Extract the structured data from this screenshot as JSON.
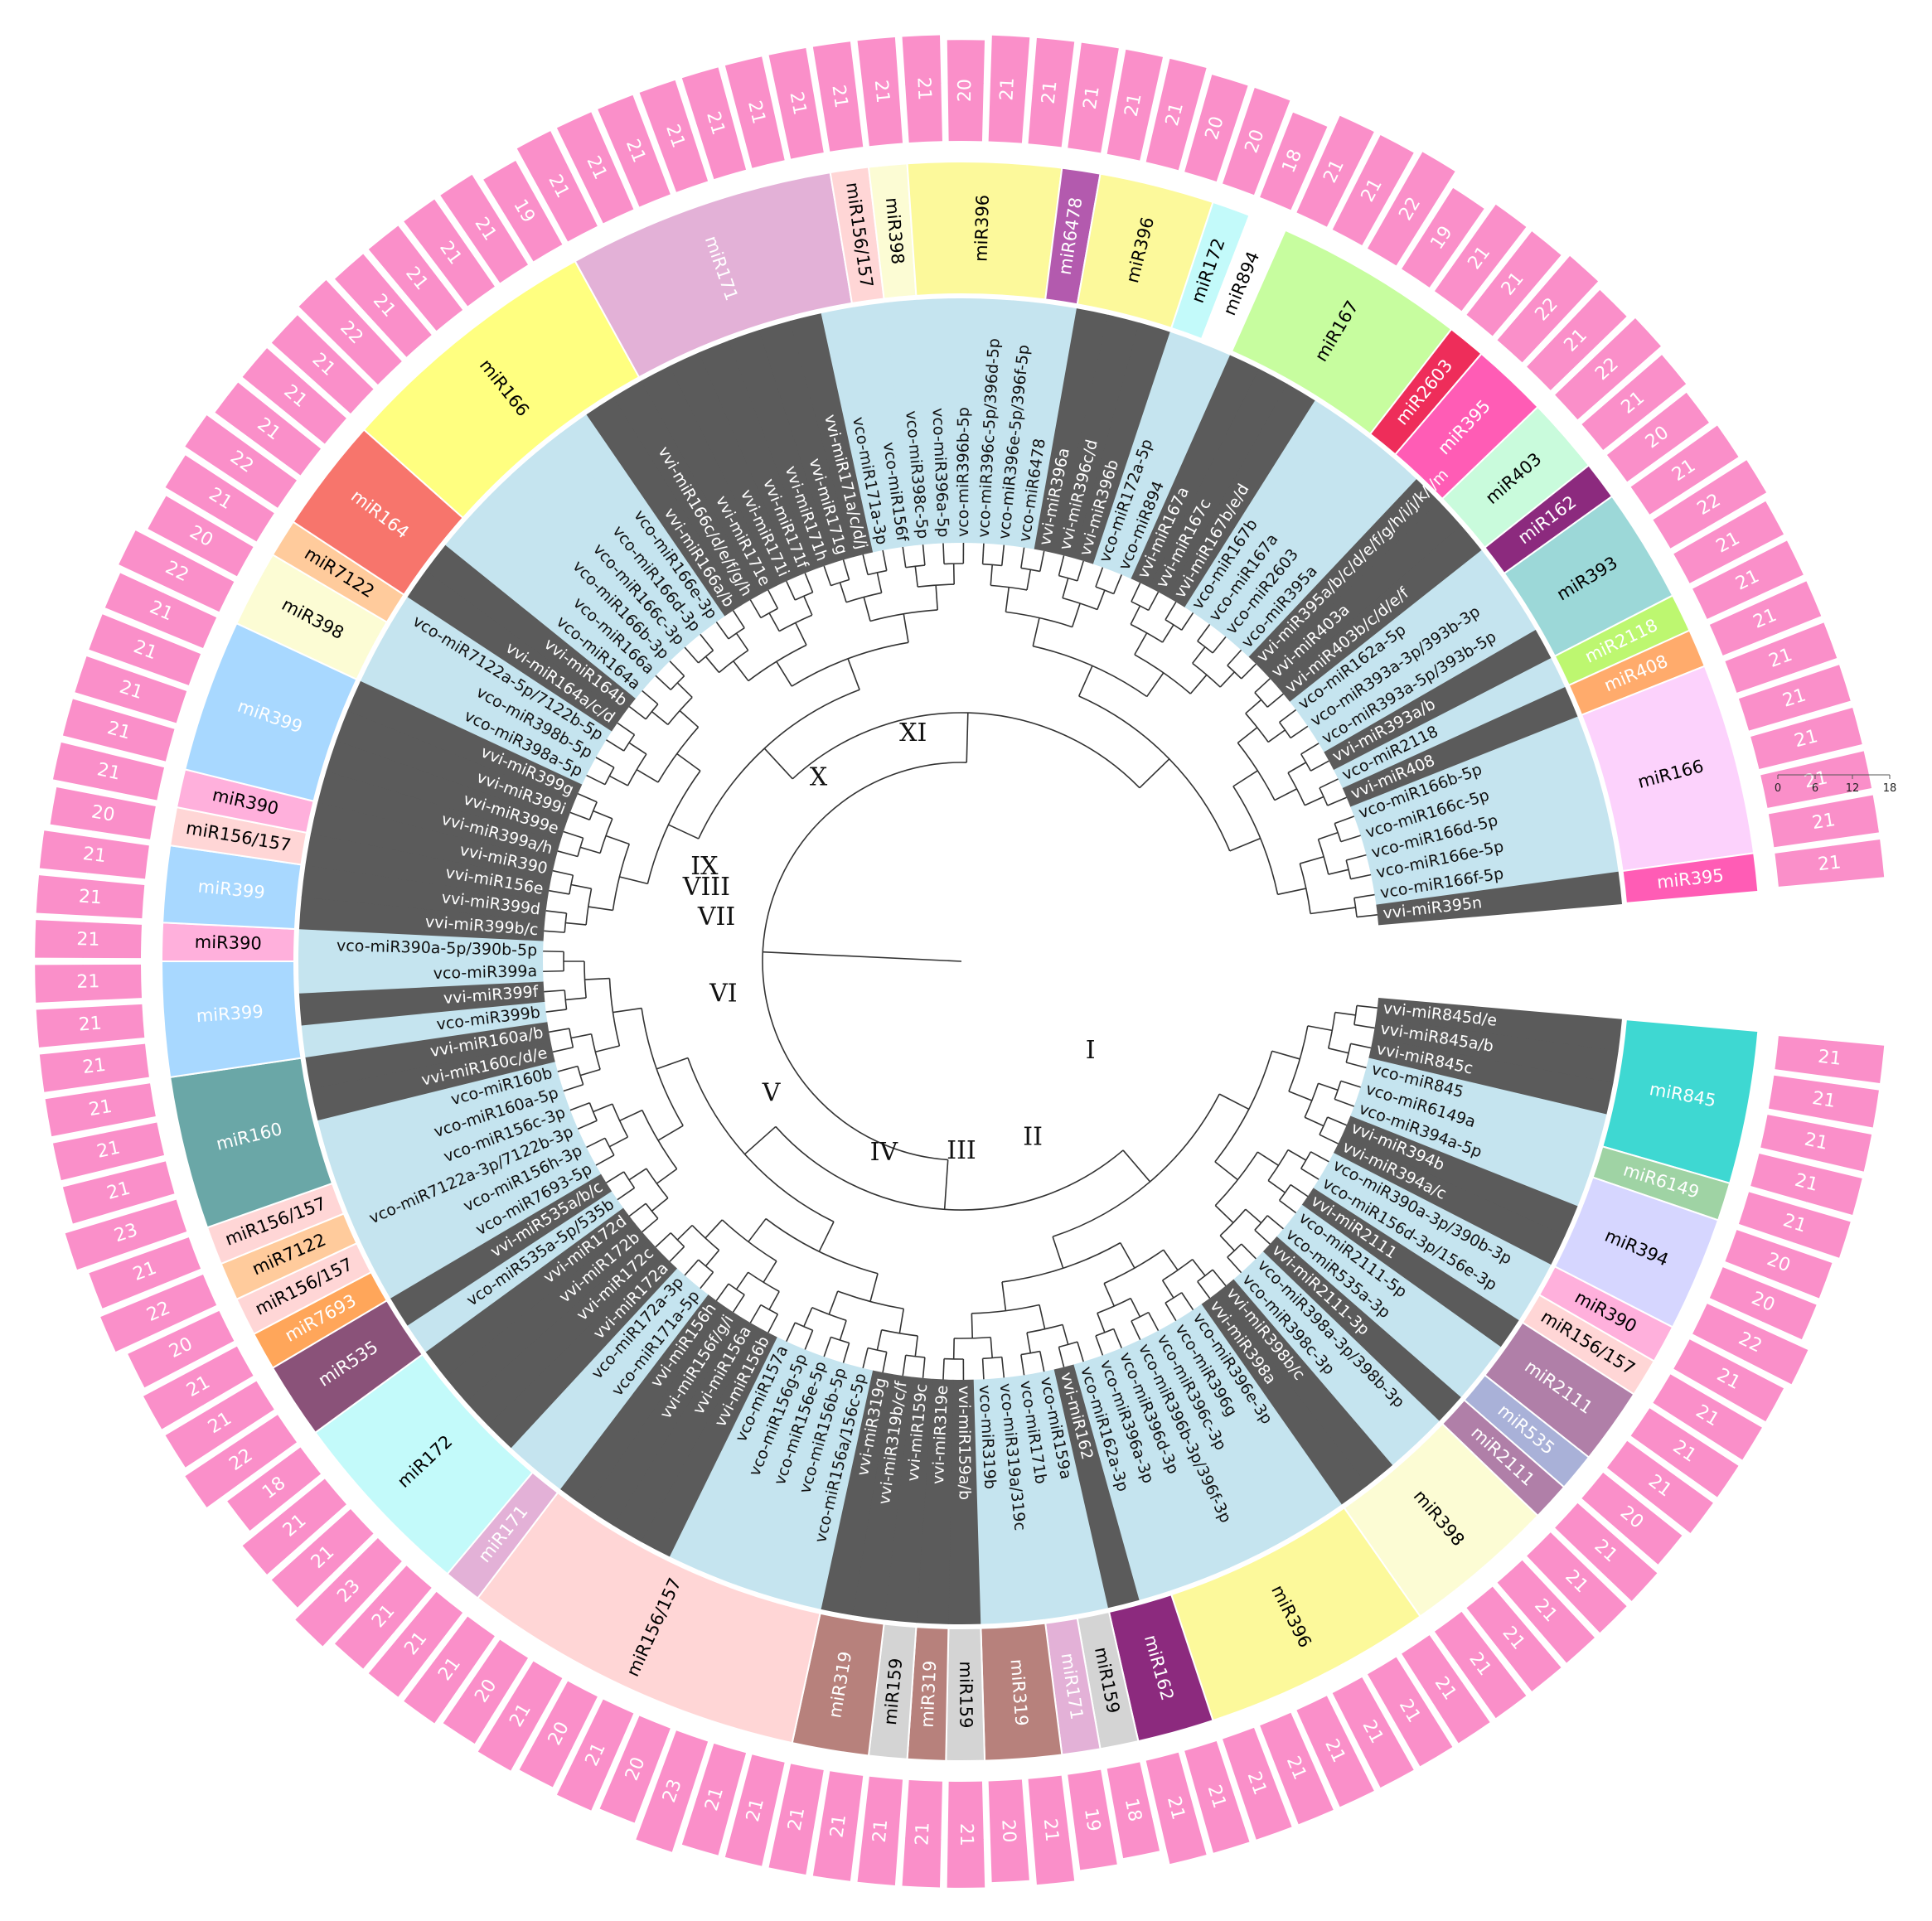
{
  "colors": {
    "vvi_band": "#5b5b5b",
    "vco_band": "#c5e4ef",
    "length_bar": "#fa8fc9",
    "branch": "#333333"
  },
  "length_scale": {
    "ticks": [
      "0",
      "6",
      "12",
      "18"
    ]
  },
  "clades": [
    "I",
    "II",
    "III",
    "IV",
    "V",
    "VI",
    "VII",
    "VIII",
    "IX",
    "X",
    "XI"
  ],
  "leaves": [
    {
      "name": "vvi-miR845d/e",
      "len": "21"
    },
    {
      "name": "vvi-miR845a/b",
      "len": "21"
    },
    {
      "name": "vvi-miR845c",
      "len": "21"
    },
    {
      "name": "vco-miR845",
      "len": "21"
    },
    {
      "name": "vco-miR6149a",
      "len": "21"
    },
    {
      "name": "vco-miR394a-5p",
      "len": "20"
    },
    {
      "name": "vvi-miR394b",
      "len": "20"
    },
    {
      "name": "vvi-miR394a/c",
      "len": "22"
    },
    {
      "name": "vco-miR390a-3p/390b-3p",
      "len": "21"
    },
    {
      "name": "vco-miR156d-3p/156e-3p",
      "len": "21"
    },
    {
      "name": "vvi-miR2111",
      "len": "21"
    },
    {
      "name": "vco-miR2111-5p",
      "len": "21"
    },
    {
      "name": "vco-miR535a-3p",
      "len": "20"
    },
    {
      "name": "vvi-miR2111-3p",
      "len": "21"
    },
    {
      "name": "vco-miR398a-3p/398b-3p",
      "len": "21"
    },
    {
      "name": "vco-miR398c-3p",
      "len": "21"
    },
    {
      "name": "vvi-miR398b/c",
      "len": "21"
    },
    {
      "name": "vvi-miR398a",
      "len": "21"
    },
    {
      "name": "vco-miR396e-3p",
      "len": "21"
    },
    {
      "name": "vco-miR396g",
      "len": "21"
    },
    {
      "name": "vco-miR396c-3p",
      "len": "21"
    },
    {
      "name": "vco-miR396b-3p/396f-3p",
      "len": "21"
    },
    {
      "name": "vco-miR396d-3p",
      "len": "21"
    },
    {
      "name": "vco-miR396a-3p",
      "len": "21"
    },
    {
      "name": "vco-miR162a-3p",
      "len": "21"
    },
    {
      "name": "vvi-miR162",
      "len": "21"
    },
    {
      "name": "vco-miR159a",
      "len": "18"
    },
    {
      "name": "vco-miR171b",
      "len": "19"
    },
    {
      "name": "vco-miR319a/319c",
      "len": "21"
    },
    {
      "name": "vco-miR319b",
      "len": "20"
    },
    {
      "name": "vvi-miR159a/b",
      "len": "21"
    },
    {
      "name": "vvi-miR319e",
      "len": "21"
    },
    {
      "name": "vvi-miR159c",
      "len": "21"
    },
    {
      "name": "vvi-miR319b/c/f",
      "len": "21"
    },
    {
      "name": "vvi-miR319g",
      "len": "21"
    },
    {
      "name": "vco-miR156a/156c-5p",
      "len": "21"
    },
    {
      "name": "vco-miR156b-5p",
      "len": "21"
    },
    {
      "name": "vco-miR156e-5p",
      "len": "23"
    },
    {
      "name": "vco-miR156g-5p",
      "len": "20"
    },
    {
      "name": "vco-miR157a",
      "len": "21"
    },
    {
      "name": "vvi-miR156b",
      "len": "20"
    },
    {
      "name": "vvi-miR156a",
      "len": "21"
    },
    {
      "name": "vvi-miR156f/g/i",
      "len": "20"
    },
    {
      "name": "vvi-miR156h",
      "len": "21"
    },
    {
      "name": "vco-miR171a-5p",
      "len": "21"
    },
    {
      "name": "vco-miR172a-3p",
      "len": "21"
    },
    {
      "name": "vvi-miR172a",
      "len": "23"
    },
    {
      "name": "vvi-miR172c",
      "len": "21"
    },
    {
      "name": "vvi-miR172b",
      "len": "21"
    },
    {
      "name": "vvi-miR172d",
      "len": "18"
    },
    {
      "name": "vco-miR535a-5p/535b",
      "len": "22"
    },
    {
      "name": "vvi-miR535a/b/c",
      "len": "21"
    },
    {
      "name": "vco-miR7693-5p",
      "len": "21"
    },
    {
      "name": "vco-miR156h-3p",
      "len": "20"
    },
    {
      "name": "vco-miR7122a-3p/7122b-3p",
      "len": "22"
    },
    {
      "name": "vco-miR156c-3p",
      "len": "21"
    },
    {
      "name": "vco-miR160a-5p",
      "len": "23"
    },
    {
      "name": "vco-miR160b",
      "len": "21"
    },
    {
      "name": "vvi-miR160c/d/e",
      "len": "21"
    },
    {
      "name": "vvi-miR160a/b",
      "len": "21"
    },
    {
      "name": "vco-miR399b",
      "len": "21"
    },
    {
      "name": "vvi-miR399f",
      "len": "21"
    },
    {
      "name": "vco-miR399a",
      "len": "21"
    },
    {
      "name": "vco-miR390a-5p/390b-5p",
      "len": "21"
    },
    {
      "name": "vvi-miR399b/c",
      "len": "21"
    },
    {
      "name": "vvi-miR399d",
      "len": "21"
    },
    {
      "name": "vvi-miR156e",
      "len": "20"
    },
    {
      "name": "vvi-miR390",
      "len": "21"
    },
    {
      "name": "vvi-miR399a/h",
      "len": "21"
    },
    {
      "name": "vvi-miR399e",
      "len": "21"
    },
    {
      "name": "vvi-miR399i",
      "len": "21"
    },
    {
      "name": "vvi-miR399g",
      "len": "21"
    },
    {
      "name": "vco-miR398a-5p",
      "len": "22"
    },
    {
      "name": "vco-miR398b-5p",
      "len": "20"
    },
    {
      "name": "vco-miR7122a-5p/7122b-5p",
      "len": "21"
    },
    {
      "name": "vvi-miR164a/c/d",
      "len": "22"
    },
    {
      "name": "vvi-miR164b",
      "len": "21"
    },
    {
      "name": "vco-miR164a",
      "len": "21"
    },
    {
      "name": "vco-miR166a",
      "len": "21"
    },
    {
      "name": "vco-miR166b-3p",
      "len": "22"
    },
    {
      "name": "vco-miR166c-3p",
      "len": "21"
    },
    {
      "name": "vco-miR166d-3p",
      "len": "21"
    },
    {
      "name": "vco-miR166e-3p",
      "len": "21"
    },
    {
      "name": "vvi-miR166a/b",
      "len": "21"
    },
    {
      "name": "vvi-miR166c/d/e/f/g/h",
      "len": "19"
    },
    {
      "name": "vvi-miR171e",
      "len": "21"
    },
    {
      "name": "vvi-miR171i",
      "len": "21"
    },
    {
      "name": "vvi-miR171f",
      "len": "21"
    },
    {
      "name": "vvi-miR171h",
      "len": "21"
    },
    {
      "name": "vvi-miR171g",
      "len": "21"
    },
    {
      "name": "vvi-miR171a/c/d/j",
      "len": "21"
    },
    {
      "name": "vco-miR171a-3p",
      "len": "21"
    },
    {
      "name": "vco-miR156f",
      "len": "21"
    },
    {
      "name": "vco-miR398c-5p",
      "len": "21"
    },
    {
      "name": "vco-miR396a-5p",
      "len": "21"
    },
    {
      "name": "vco-miR396b-5p",
      "len": "20"
    },
    {
      "name": "vco-miR396c-5p/396d-5p",
      "len": "21"
    },
    {
      "name": "vco-miR396e-5p/396f-5p",
      "len": "21"
    },
    {
      "name": "vco-miR6478",
      "len": "21"
    },
    {
      "name": "vvi-miR396a",
      "len": "21"
    },
    {
      "name": "vvi-miR396c/d",
      "len": "21"
    },
    {
      "name": "vvi-miR396b",
      "len": "20"
    },
    {
      "name": "vco-miR172a-5p",
      "len": "20"
    },
    {
      "name": "vco-miR894",
      "len": "18"
    },
    {
      "name": "vvi-miR167a",
      "len": "21"
    },
    {
      "name": "vvi-miR167c",
      "len": "21"
    },
    {
      "name": "vvi-miR167b/e/d",
      "len": "22"
    },
    {
      "name": "vco-miR167b",
      "len": "19"
    },
    {
      "name": "vco-miR167a",
      "len": "21"
    },
    {
      "name": "vco-miR2603",
      "len": "21"
    },
    {
      "name": "vco-miR395a",
      "len": "22"
    },
    {
      "name": "vvi-miR395a/b/c/d/e/f/g/h/i/j/k/l/m",
      "len": "21"
    },
    {
      "name": "vvi-miR403a",
      "len": "22"
    },
    {
      "name": "vvi-miR403b/c/d/e/f",
      "len": "21"
    },
    {
      "name": "vco-miR162a-5p",
      "len": "20"
    },
    {
      "name": "vco-miR393a-3p/393b-3p",
      "len": "21"
    },
    {
      "name": "vco-miR393a-5p/393b-5p",
      "len": "22"
    },
    {
      "name": "vvi-miR393a/b",
      "len": "21"
    },
    {
      "name": "vco-miR2118",
      "len": "21"
    },
    {
      "name": "vvi-miR408",
      "len": "21"
    },
    {
      "name": "vco-miR166b-5p",
      "len": "21"
    },
    {
      "name": "vco-miR166c-5p",
      "len": "21"
    },
    {
      "name": "vco-miR166d-5p",
      "len": "21"
    },
    {
      "name": "vco-miR166e-5p",
      "len": "21"
    },
    {
      "name": "vco-miR166f-5p",
      "len": "21"
    },
    {
      "name": "vvi-miR395n",
      "len": "21"
    }
  ],
  "families": [
    {
      "name": "miR845",
      "from": 0,
      "to": 3,
      "color": "#3ed8d2",
      "text": "#ffffff"
    },
    {
      "name": "miR6149",
      "from": 4,
      "to": 4,
      "color": "#9fd3a4",
      "text": "#ffffff"
    },
    {
      "name": "miR394",
      "from": 5,
      "to": 7,
      "color": "#d6d6ff",
      "text": "#000000"
    },
    {
      "name": "miR390",
      "from": 8,
      "to": 8,
      "color": "#ffb0dc",
      "text": "#000000"
    },
    {
      "name": "miR156/157",
      "from": 9,
      "to": 9,
      "color": "#ffd6d6",
      "text": "#000000"
    },
    {
      "name": "miR2111",
      "from": 10,
      "to": 11,
      "color": "#b07fa8",
      "text": "#ffffff"
    },
    {
      "name": "miR535",
      "from": 12,
      "to": 12,
      "color": "#a9b1d8",
      "text": "#ffffff"
    },
    {
      "name": "miR2111",
      "from": 13,
      "to": 13,
      "color": "#b07fa8",
      "text": "#ffffff"
    },
    {
      "name": "miR398",
      "from": 14,
      "to": 17,
      "color": "#fcfcd4",
      "text": "#000000"
    },
    {
      "name": "miR396",
      "from": 18,
      "to": 23,
      "color": "#fcf99b",
      "text": "#000000"
    },
    {
      "name": "miR162",
      "from": 24,
      "to": 25,
      "color": "#8c2a7e",
      "text": "#ffffff"
    },
    {
      "name": "miR159",
      "from": 26,
      "to": 26,
      "color": "#d4d4d4",
      "text": "#000000"
    },
    {
      "name": "miR171",
      "from": 27,
      "to": 27,
      "color": "#e3b1d7",
      "text": "#ffffff"
    },
    {
      "name": "miR319",
      "from": 28,
      "to": 29,
      "color": "#b7817c",
      "text": "#ffffff"
    },
    {
      "name": "miR159",
      "from": 30,
      "to": 30,
      "color": "#d4d4d4",
      "text": "#000000"
    },
    {
      "name": "miR319",
      "from": 31,
      "to": 31,
      "color": "#b7817c",
      "text": "#ffffff"
    },
    {
      "name": "miR159",
      "from": 32,
      "to": 32,
      "color": "#d4d4d4",
      "text": "#000000"
    },
    {
      "name": "miR319",
      "from": 33,
      "to": 34,
      "color": "#b7817c",
      "text": "#ffffff"
    },
    {
      "name": "miR156/157",
      "from": 35,
      "to": 43,
      "color": "#ffd6d6",
      "text": "#000000"
    },
    {
      "name": "miR171",
      "from": 44,
      "to": 44,
      "color": "#e3b1d7",
      "text": "#ffffff"
    },
    {
      "name": "miR172",
      "from": 45,
      "to": 49,
      "color": "#c3fafa",
      "text": "#000000"
    },
    {
      "name": "miR535",
      "from": 50,
      "to": 51,
      "color": "#8a5279",
      "text": "#ffffff"
    },
    {
      "name": "miR7693",
      "from": 52,
      "to": 52,
      "color": "#ffa65a",
      "text": "#ffffff"
    },
    {
      "name": "miR156/157",
      "from": 53,
      "to": 53,
      "color": "#ffd6d6",
      "text": "#000000"
    },
    {
      "name": "miR7122",
      "from": 54,
      "to": 54,
      "color": "#ffcb9c",
      "text": "#000000"
    },
    {
      "name": "miR156/157",
      "from": 55,
      "to": 55,
      "color": "#ffd6d6",
      "text": "#000000"
    },
    {
      "name": "miR160",
      "from": 56,
      "to": 59,
      "color": "#6aa7a7",
      "text": "#ffffff"
    },
    {
      "name": "miR399",
      "from": 60,
      "to": 62,
      "color": "#a8d8ff",
      "text": "#ffffff"
    },
    {
      "name": "miR390",
      "from": 63,
      "to": 63,
      "color": "#ffb0dc",
      "text": "#000000"
    },
    {
      "name": "miR399",
      "from": 64,
      "to": 65,
      "color": "#a8d8ff",
      "text": "#ffffff"
    },
    {
      "name": "miR156/157",
      "from": 66,
      "to": 66,
      "color": "#ffd6d6",
      "text": "#000000"
    },
    {
      "name": "miR390",
      "from": 67,
      "to": 67,
      "color": "#ffb0dc",
      "text": "#000000"
    },
    {
      "name": "miR399",
      "from": 68,
      "to": 71,
      "color": "#a8d8ff",
      "text": "#ffffff"
    },
    {
      "name": "miR398",
      "from": 72,
      "to": 73,
      "color": "#fcfcd4",
      "text": "#000000"
    },
    {
      "name": "miR7122",
      "from": 74,
      "to": 74,
      "color": "#ffcb9c",
      "text": "#000000"
    },
    {
      "name": "miR164",
      "from": 75,
      "to": 77,
      "color": "#f7756c",
      "text": "#ffffff"
    },
    {
      "name": "miR166",
      "from": 78,
      "to": 84,
      "color": "#ffff80",
      "text": "#000000"
    },
    {
      "name": "miR171",
      "from": 85,
      "to": 91,
      "color": "#e3b1d7",
      "text": "#ffffff"
    },
    {
      "name": "miR156/157",
      "from": 92,
      "to": 92,
      "color": "#ffd6d6",
      "text": "#000000"
    },
    {
      "name": "miR398",
      "from": 93,
      "to": 93,
      "color": "#fcfcd4",
      "text": "#000000"
    },
    {
      "name": "miR396",
      "from": 94,
      "to": 97,
      "color": "#fcf99b",
      "text": "#000000"
    },
    {
      "name": "miR6478",
      "from": 98,
      "to": 98,
      "color": "#b35aae",
      "text": "#ffffff"
    },
    {
      "name": "miR396",
      "from": 99,
      "to": 101,
      "color": "#fcf99b",
      "text": "#000000"
    },
    {
      "name": "miR172",
      "from": 102,
      "to": 102,
      "color": "#c3fafa",
      "text": "#000000"
    },
    {
      "name": "miR894",
      "from": 103,
      "to": 103,
      "color": "#ffffff",
      "text": "#000000"
    },
    {
      "name": "miR167",
      "from": 104,
      "to": 108,
      "color": "#c7fd9f",
      "text": "#000000"
    },
    {
      "name": "miR2603",
      "from": 109,
      "to": 109,
      "color": "#ee2d5a",
      "text": "#ffffff"
    },
    {
      "name": "miR395",
      "from": 110,
      "to": 111,
      "color": "#ff5cb5",
      "text": "#ffffff"
    },
    {
      "name": "miR403",
      "from": 112,
      "to": 113,
      "color": "#c9fbdc",
      "text": "#000000"
    },
    {
      "name": "miR162",
      "from": 114,
      "to": 114,
      "color": "#8c2a7e",
      "text": "#ffffff"
    },
    {
      "name": "miR393",
      "from": 115,
      "to": 117,
      "color": "#9cd8d8",
      "text": "#000000"
    },
    {
      "name": "miR2118",
      "from": 118,
      "to": 118,
      "color": "#bdf770",
      "text": "#ffffff"
    },
    {
      "name": "miR408",
      "from": 119,
      "to": 119,
      "color": "#ffab6c",
      "text": "#ffffff"
    },
    {
      "name": "miR166",
      "from": 120,
      "to": 124,
      "color": "#fcd2fc",
      "text": "#000000"
    },
    {
      "name": "miR395",
      "from": 125,
      "to": 125,
      "color": "#ff5cb5",
      "text": "#ffffff"
    }
  ]
}
